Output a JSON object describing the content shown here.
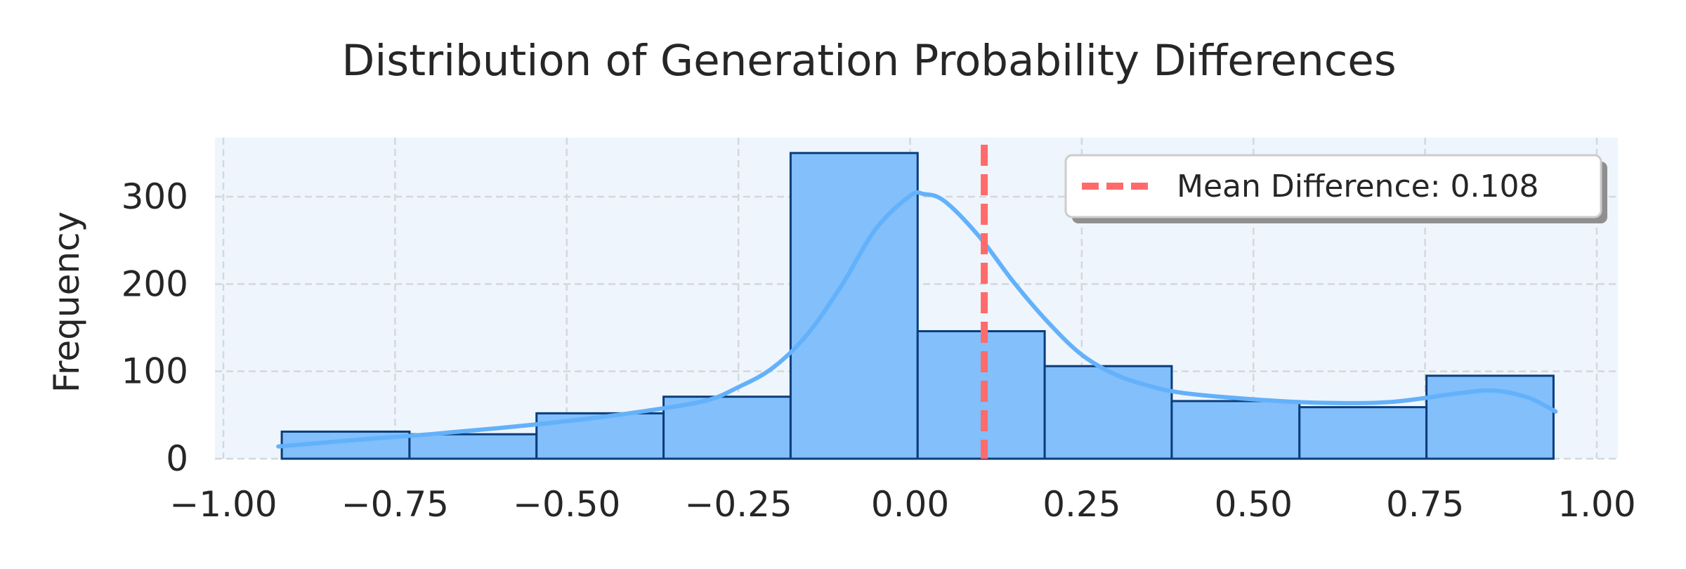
{
  "chart_data": {
    "type": "bar",
    "title": "Distribution of Generation Probability Differences",
    "xlabel": "",
    "ylabel": "Frequency",
    "xlim": [
      -1.0,
      1.0
    ],
    "ylim": [
      0,
      365
    ],
    "grid": true,
    "xticks": [
      -1.0,
      -0.75,
      -0.5,
      -0.25,
      0.0,
      0.25,
      0.5,
      0.75,
      1.0
    ],
    "xtick_labels": [
      "−1.00",
      "−0.75",
      "−0.50",
      "−0.25",
      "0.00",
      "0.25",
      "0.50",
      "0.75",
      "1.00"
    ],
    "yticks": [
      0,
      100,
      200,
      300
    ],
    "ytick_labels": [
      "0",
      "100",
      "200",
      "300"
    ],
    "bins": [
      -0.915,
      -0.729,
      -0.544,
      -0.359,
      -0.174,
      0.011,
      0.196,
      0.381,
      0.567,
      0.752,
      0.937
    ],
    "counts": [
      31,
      28,
      52,
      71,
      350,
      146,
      106,
      66,
      59,
      95
    ],
    "kde": {
      "x": [
        -0.92,
        -0.8,
        -0.7,
        -0.6,
        -0.5,
        -0.4,
        -0.3,
        -0.25,
        -0.2,
        -0.15,
        -0.1,
        -0.05,
        0.0,
        0.02,
        0.05,
        0.1,
        0.15,
        0.2,
        0.25,
        0.3,
        0.35,
        0.4,
        0.5,
        0.6,
        0.7,
        0.8,
        0.85,
        0.9,
        0.94
      ],
      "y": [
        14,
        22,
        28,
        35,
        43,
        53,
        66,
        82,
        104,
        142,
        198,
        263,
        301,
        303,
        295,
        255,
        203,
        157,
        119,
        96,
        83,
        75,
        68,
        64,
        65,
        75,
        78,
        70,
        54
      ]
    },
    "mean_line": {
      "x": 0.108,
      "label": "Mean Difference: 0.108"
    },
    "legend_position": "top-right",
    "colors": {
      "bar_fill": "#82bffb",
      "bar_edge": "#0a3d7a",
      "kde_line": "#63b1fa",
      "mean_line": "#ff6b6b",
      "plot_bg": "#eef5fc",
      "grid": "#d4d8dc"
    }
  }
}
